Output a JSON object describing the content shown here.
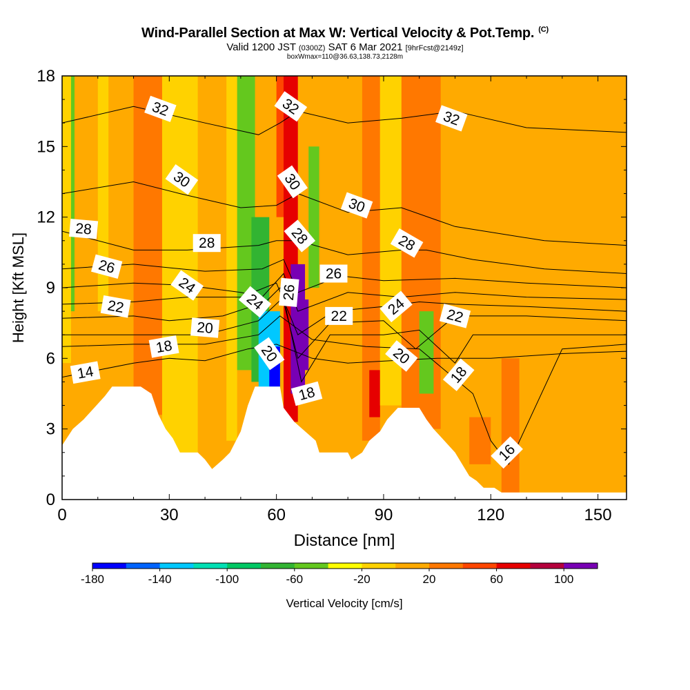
{
  "header": {
    "title": "Wind-Parallel Section at Max W: Vertical Velocity & Pot.Temp.",
    "copyright": "(C)",
    "valid_main": "Valid 1200 JST",
    "valid_utc": "(0300Z)",
    "valid_date": "SAT 6 Mar 2021",
    "forecast": "[9hrFcst@2149z]",
    "box_info": "boxWmax=110@36.63,138.73,2128m"
  },
  "chart_data": {
    "type": "heatmap",
    "title": "Wind-Parallel Section at Max W: Vertical Velocity & Pot.Temp.",
    "xlabel": "Distance [nm]",
    "ylabel": "Height [Kft MSL]",
    "xlim": [
      0,
      158
    ],
    "ylim": [
      0,
      18
    ],
    "x_ticks": [
      0,
      30,
      60,
      90,
      120,
      150
    ],
    "y_ticks": [
      0,
      3,
      6,
      9,
      12,
      15,
      18
    ],
    "grid": false,
    "colorbar": {
      "label": "Vertical Velocity [cm/s]",
      "boundaries": [
        -180,
        -160,
        -140,
        -120,
        -100,
        -80,
        -60,
        -40,
        -20,
        0,
        20,
        40,
        60,
        80,
        100,
        120
      ],
      "tick_labels": [
        "-180",
        "-140",
        "-100",
        "-60",
        "-20",
        "20",
        "60",
        "100"
      ],
      "colors": [
        "#0000ff",
        "#0064ff",
        "#00c8ff",
        "#00e0b4",
        "#00c864",
        "#32b432",
        "#64c81e",
        "#ffff00",
        "#ffd200",
        "#ffaa00",
        "#ff7800",
        "#ff4600",
        "#e60000",
        "#b4003c",
        "#7800b4"
      ]
    },
    "terrain": [
      [
        0,
        2.3
      ],
      [
        3,
        3
      ],
      [
        6,
        3.4
      ],
      [
        9,
        3.9
      ],
      [
        12,
        4.4
      ],
      [
        14,
        4.8
      ],
      [
        22,
        4.8
      ],
      [
        25,
        4.5
      ],
      [
        27,
        3.6
      ],
      [
        29,
        3
      ],
      [
        31,
        2.6
      ],
      [
        33,
        2
      ],
      [
        36,
        2
      ],
      [
        38,
        2
      ],
      [
        40,
        1.7
      ],
      [
        42,
        1.3
      ],
      [
        45,
        1.7
      ],
      [
        47,
        2
      ],
      [
        50,
        2.9
      ],
      [
        52,
        4
      ],
      [
        54,
        4.8
      ],
      [
        61,
        4.8
      ],
      [
        62,
        3.9
      ],
      [
        65,
        3.3
      ],
      [
        68,
        2.9
      ],
      [
        71,
        2.5
      ],
      [
        72,
        2
      ],
      [
        80,
        2
      ],
      [
        81,
        1.7
      ],
      [
        84,
        2
      ],
      [
        86,
        2.5
      ],
      [
        89,
        2.9
      ],
      [
        91,
        3.4
      ],
      [
        94,
        3.9
      ],
      [
        100,
        3.9
      ],
      [
        102,
        3.4
      ],
      [
        104,
        3
      ],
      [
        107,
        2.5
      ],
      [
        110,
        2
      ],
      [
        112,
        1.5
      ],
      [
        114,
        1
      ],
      [
        116,
        0.8
      ],
      [
        118,
        0.5
      ],
      [
        121,
        0.5
      ],
      [
        123,
        0.3
      ],
      [
        158,
        0.3
      ]
    ],
    "velocity_bands": [
      {
        "x0": 0,
        "x1": 2.5,
        "y0": 5.8,
        "y1": 18,
        "w": -20
      },
      {
        "x0": 2.5,
        "x1": 3.5,
        "y0": 8,
        "y1": 18,
        "w": -60
      },
      {
        "x0": 3.5,
        "x1": 10,
        "y0": 2,
        "y1": 18,
        "w": 10
      },
      {
        "x0": 10,
        "x1": 13,
        "y0": 8,
        "y1": 18,
        "w": -20
      },
      {
        "x0": 13,
        "x1": 20,
        "y0": 4.8,
        "y1": 18,
        "w": 10
      },
      {
        "x0": 20,
        "x1": 28,
        "y0": 3.6,
        "y1": 18,
        "w": 30
      },
      {
        "x0": 28,
        "x1": 38,
        "y0": 2,
        "y1": 18,
        "w": -20
      },
      {
        "x0": 38,
        "x1": 46,
        "y0": 1.3,
        "y1": 18,
        "w": 10
      },
      {
        "x0": 46,
        "x1": 49,
        "y0": 2.5,
        "y1": 18,
        "w": -20
      },
      {
        "x0": 49,
        "x1": 54,
        "y0": 5.5,
        "y1": 18,
        "w": -60
      },
      {
        "x0": 53,
        "x1": 58,
        "y0": 5,
        "y1": 12,
        "w": -80
      },
      {
        "x0": 55,
        "x1": 61,
        "y0": 3.9,
        "y1": 8,
        "w": -140
      },
      {
        "x0": 58,
        "x1": 61,
        "y0": 4.8,
        "y1": 6.5,
        "w": -180
      },
      {
        "x0": 60,
        "x1": 63,
        "y0": 12,
        "y1": 18,
        "w": 50
      },
      {
        "x0": 62,
        "x1": 66,
        "y0": 3.3,
        "y1": 18,
        "w": 70
      },
      {
        "x0": 64,
        "x1": 68,
        "y0": 4.5,
        "y1": 10,
        "w": 100
      },
      {
        "x0": 66,
        "x1": 69,
        "y0": 5.5,
        "y1": 8.5,
        "w": 110
      },
      {
        "x0": 69,
        "x1": 72,
        "y0": 9,
        "y1": 15,
        "w": -60
      },
      {
        "x0": 72,
        "x1": 84,
        "y0": 2,
        "y1": 18,
        "w": 10
      },
      {
        "x0": 84,
        "x1": 89,
        "y0": 2.5,
        "y1": 18,
        "w": 30
      },
      {
        "x0": 86,
        "x1": 89,
        "y0": 3.5,
        "y1": 5.5,
        "w": 60
      },
      {
        "x0": 89,
        "x1": 95,
        "y0": 4,
        "y1": 18,
        "w": -20
      },
      {
        "x0": 95,
        "x1": 106,
        "y0": 3,
        "y1": 18,
        "w": 30
      },
      {
        "x0": 100,
        "x1": 104,
        "y0": 4.5,
        "y1": 8,
        "w": -60
      },
      {
        "x0": 106,
        "x1": 120,
        "y0": 0.8,
        "y1": 18,
        "w": 10
      },
      {
        "x0": 114,
        "x1": 123,
        "y0": 1.5,
        "y1": 3.5,
        "w": 30
      },
      {
        "x0": 120,
        "x1": 158,
        "y0": 0.3,
        "y1": 18,
        "w": 10
      },
      {
        "x0": 123,
        "x1": 128,
        "y0": 0.3,
        "y1": 6,
        "w": 30
      }
    ],
    "isentropes": [
      {
        "level": 14,
        "pts": [
          [
            0,
            5.2
          ],
          [
            20,
            5.8
          ],
          [
            30,
            6
          ],
          [
            40,
            5.9
          ],
          [
            52,
            6.4
          ],
          [
            60,
            6.6
          ],
          [
            70,
            6
          ],
          [
            80,
            5.8
          ],
          [
            92,
            5.9
          ],
          [
            105,
            6
          ],
          [
            120,
            6
          ],
          [
            140,
            6.2
          ],
          [
            158,
            6.3
          ]
        ]
      },
      {
        "level": 16,
        "pts": [
          [
            0,
            6.5
          ],
          [
            20,
            6.6
          ],
          [
            40,
            6.6
          ],
          [
            55,
            7
          ],
          [
            61,
            7.8
          ],
          [
            70,
            6.8
          ],
          [
            85,
            6.5
          ],
          [
            100,
            6.4
          ],
          [
            115,
            4.5
          ],
          [
            120,
            2.5
          ],
          [
            125,
            1.5
          ],
          [
            140,
            6.4
          ],
          [
            158,
            6.6
          ]
        ]
      },
      {
        "level": 18,
        "pts": [
          [
            0,
            7
          ],
          [
            25,
            7
          ],
          [
            40,
            7
          ],
          [
            55,
            7.6
          ],
          [
            62,
            8.6
          ],
          [
            67,
            5
          ],
          [
            75,
            7
          ],
          [
            90,
            7
          ],
          [
            100,
            7.2
          ],
          [
            110,
            5.8
          ],
          [
            115,
            7
          ],
          [
            130,
            7
          ],
          [
            158,
            7
          ]
        ]
      },
      {
        "level": 20,
        "pts": [
          [
            0,
            7.7
          ],
          [
            20,
            7.8
          ],
          [
            30,
            7.6
          ],
          [
            45,
            7.8
          ],
          [
            57,
            8.4
          ],
          [
            61,
            9
          ],
          [
            66,
            6
          ],
          [
            75,
            7.5
          ],
          [
            90,
            7.6
          ],
          [
            99,
            6.4
          ],
          [
            110,
            7.8
          ],
          [
            130,
            7.8
          ],
          [
            158,
            7.6
          ]
        ]
      },
      {
        "level": 22,
        "pts": [
          [
            0,
            8.3
          ],
          [
            20,
            8.4
          ],
          [
            35,
            8.6
          ],
          [
            50,
            8.6
          ],
          [
            60,
            9.2
          ],
          [
            66,
            7
          ],
          [
            76,
            8
          ],
          [
            90,
            8.2
          ],
          [
            100,
            8.4
          ],
          [
            110,
            8.3
          ],
          [
            130,
            8.2
          ],
          [
            158,
            8
          ]
        ]
      },
      {
        "level": 24,
        "pts": [
          [
            0,
            9
          ],
          [
            20,
            9.2
          ],
          [
            35,
            9.1
          ],
          [
            50,
            8.8
          ],
          [
            56,
            8.6
          ],
          [
            62,
            9.6
          ],
          [
            66,
            8
          ],
          [
            80,
            8.8
          ],
          [
            95,
            8.6
          ],
          [
            110,
            8.8
          ],
          [
            130,
            8.6
          ],
          [
            158,
            8.5
          ]
        ]
      },
      {
        "level": 26,
        "pts": [
          [
            0,
            9.8
          ],
          [
            20,
            10
          ],
          [
            40,
            9.7
          ],
          [
            56,
            9.8
          ],
          [
            62,
            10.2
          ],
          [
            66,
            8.8
          ],
          [
            78,
            9.5
          ],
          [
            90,
            9.3
          ],
          [
            110,
            9.4
          ],
          [
            130,
            9.2
          ],
          [
            158,
            9
          ]
        ]
      },
      {
        "level": 28,
        "pts": [
          [
            0,
            11.4
          ],
          [
            20,
            10.6
          ],
          [
            35,
            10.6
          ],
          [
            55,
            10.8
          ],
          [
            60,
            11
          ],
          [
            66,
            11
          ],
          [
            80,
            10.4
          ],
          [
            95,
            10.6
          ],
          [
            102,
            10.6
          ],
          [
            115,
            10.2
          ],
          [
            135,
            9.8
          ],
          [
            158,
            9.6
          ]
        ]
      },
      {
        "level": 30,
        "pts": [
          [
            0,
            13
          ],
          [
            20,
            13.5
          ],
          [
            33,
            13
          ],
          [
            50,
            12.4
          ],
          [
            60,
            12.5
          ],
          [
            66,
            13
          ],
          [
            80,
            12.2
          ],
          [
            95,
            12.4
          ],
          [
            110,
            11.6
          ],
          [
            135,
            11
          ],
          [
            158,
            10.8
          ]
        ]
      },
      {
        "level": 32,
        "pts": [
          [
            0,
            16
          ],
          [
            20,
            16.7
          ],
          [
            40,
            16
          ],
          [
            55,
            15.5
          ],
          [
            61,
            16
          ],
          [
            66,
            16.5
          ],
          [
            80,
            16
          ],
          [
            95,
            16.2
          ],
          [
            110,
            16.5
          ],
          [
            130,
            15.8
          ],
          [
            158,
            15.6
          ]
        ]
      }
    ],
    "contour_labels": [
      {
        "text": "32",
        "x": 27.5,
        "y": 16.6,
        "rot": 20
      },
      {
        "text": "32",
        "x": 64,
        "y": 16.7,
        "rot": 35
      },
      {
        "text": "32",
        "x": 109,
        "y": 16.2,
        "rot": 20
      },
      {
        "text": "30",
        "x": 33.5,
        "y": 13.6,
        "rot": 35
      },
      {
        "text": "30",
        "x": 64.5,
        "y": 13.5,
        "rot": 55
      },
      {
        "text": "30",
        "x": 82.5,
        "y": 12.5,
        "rot": 20
      },
      {
        "text": "28",
        "x": 6,
        "y": 11.5,
        "rot": 5
      },
      {
        "text": "28",
        "x": 40.5,
        "y": 10.9,
        "rot": 0
      },
      {
        "text": "28",
        "x": 66.5,
        "y": 11.2,
        "rot": 50
      },
      {
        "text": "28",
        "x": 96.5,
        "y": 10.9,
        "rot": 30
      },
      {
        "text": "26",
        "x": 12.5,
        "y": 9.9,
        "rot": 15
      },
      {
        "text": "26",
        "x": 63.5,
        "y": 8.8,
        "rot": -85
      },
      {
        "text": "26",
        "x": 76,
        "y": 9.6,
        "rot": 0
      },
      {
        "text": "24",
        "x": 35,
        "y": 9.1,
        "rot": 35
      },
      {
        "text": "24",
        "x": 54,
        "y": 8.4,
        "rot": 40
      },
      {
        "text": "24",
        "x": 93.5,
        "y": 8.2,
        "rot": -40
      },
      {
        "text": "22",
        "x": 15,
        "y": 8.2,
        "rot": 10
      },
      {
        "text": "22",
        "x": 77.5,
        "y": 7.8,
        "rot": 0
      },
      {
        "text": "22",
        "x": 110,
        "y": 7.8,
        "rot": 15
      },
      {
        "text": "20",
        "x": 40,
        "y": 7.3,
        "rot": 5
      },
      {
        "text": "20",
        "x": 58,
        "y": 6.2,
        "rot": 55
      },
      {
        "text": "20",
        "x": 95,
        "y": 6.1,
        "rot": 40
      },
      {
        "text": "18",
        "x": 28.5,
        "y": 6.5,
        "rot": -10
      },
      {
        "text": "18",
        "x": 68.5,
        "y": 4.5,
        "rot": -15
      },
      {
        "text": "18",
        "x": 111,
        "y": 5.3,
        "rot": -50
      },
      {
        "text": "16",
        "x": 124.5,
        "y": 2,
        "rot": -45
      },
      {
        "text": "14",
        "x": 6.5,
        "y": 5.4,
        "rot": -10
      }
    ]
  }
}
